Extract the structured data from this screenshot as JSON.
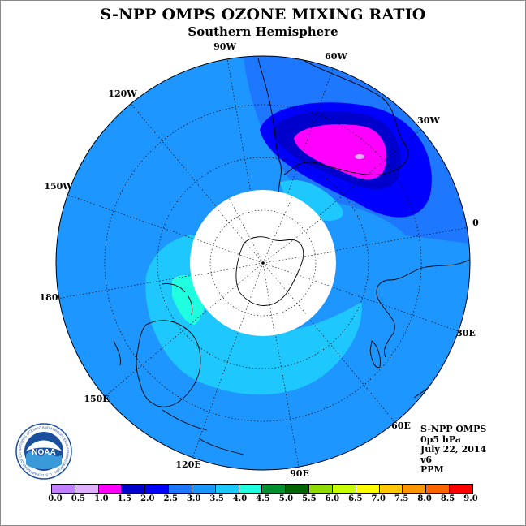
{
  "title": "S-NPP OMPS OZONE MIXING RATIO",
  "subtitle": "Southern Hemisphere",
  "longitude_labels": [
    "90W",
    "60W",
    "30W",
    "0",
    "30E",
    "60E",
    "90E",
    "120E",
    "150E",
    "180",
    "150W",
    "120W"
  ],
  "info": {
    "instrument": "S-NPP OMPS",
    "level": "0p5 hPa",
    "date": "July 22, 2014",
    "version": "v6",
    "units": "PPM"
  },
  "logo": {
    "text": "NOAA",
    "ring_text": "NATIONAL OCEANIC AND ATMOSPHERIC ADMINISTRATION · U.S. DEPARTMENT OF COMMERCE"
  },
  "colorbar": {
    "ticks": [
      "0.0",
      "0.5",
      "1.0",
      "1.5",
      "2.0",
      "2.5",
      "3.0",
      "3.5",
      "4.0",
      "4.5",
      "5.0",
      "5.5",
      "6.0",
      "6.5",
      "7.0",
      "7.5",
      "8.0",
      "8.5",
      "9.0"
    ],
    "colors": [
      "#c080ff",
      "#e0b0ff",
      "#ff00ff",
      "#0000cc",
      "#0000ff",
      "#1e78ff",
      "#1e96ff",
      "#1ec8ff",
      "#20ffe0",
      "#009030",
      "#006400",
      "#90dc00",
      "#c8ff00",
      "#ffff00",
      "#ffc800",
      "#ff9600",
      "#ff6400",
      "#ff0000",
      "#8b5a3c"
    ]
  }
}
